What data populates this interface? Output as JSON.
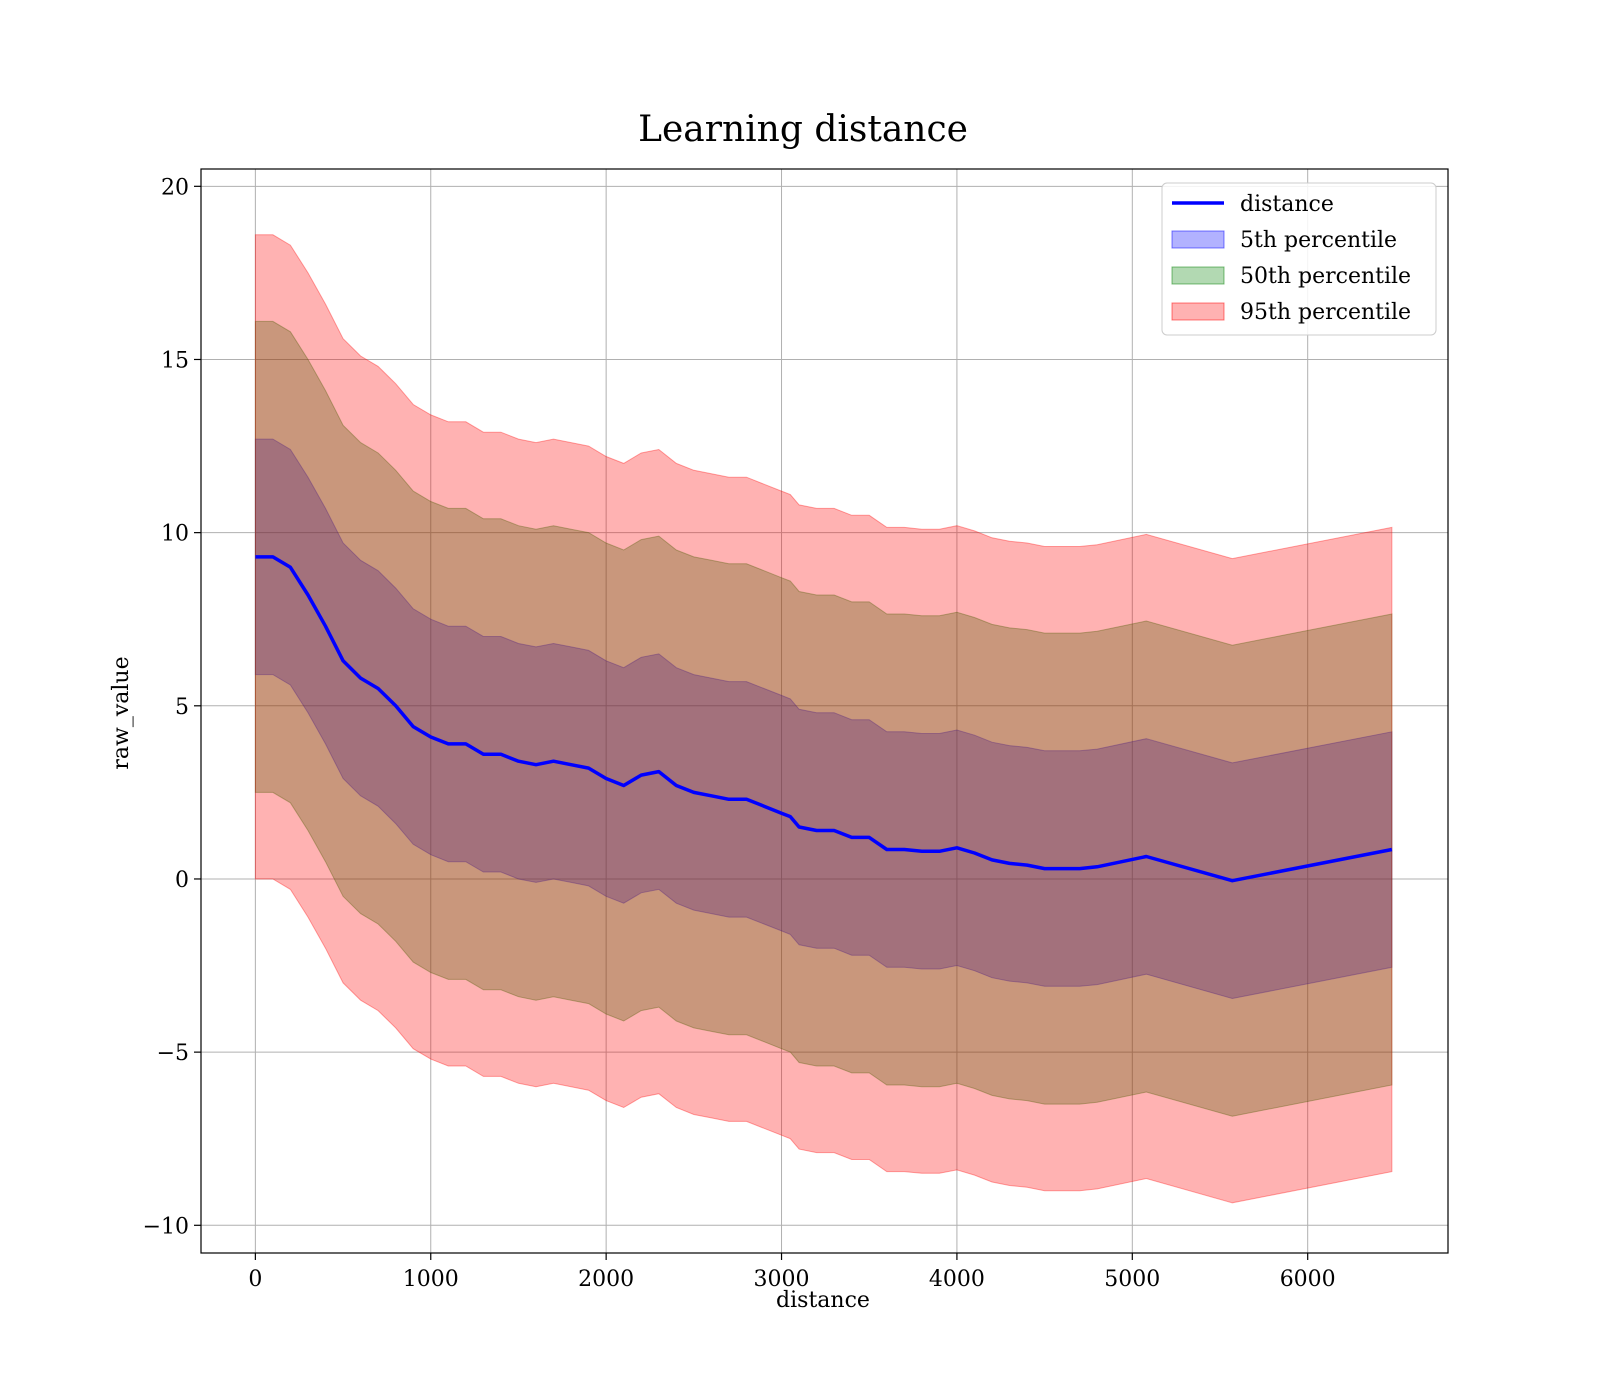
{
  "chart_data": {
    "type": "area",
    "title": "Learning distance",
    "xlabel": "distance",
    "ylabel": "raw_value",
    "xlim": [
      -310,
      6800
    ],
    "ylim": [
      -10.8,
      20.5
    ],
    "xticks": [
      0,
      1000,
      2000,
      3000,
      4000,
      5000,
      6000
    ],
    "yticks": [
      -10,
      -5,
      0,
      5,
      10,
      15,
      20
    ],
    "ytick_labels": [
      "−10",
      "−5",
      "0",
      "5",
      "10",
      "15",
      "20"
    ],
    "grid": true,
    "legend_position": "top-right",
    "x": [
      0,
      100,
      200,
      300,
      400,
      500,
      600,
      700,
      800,
      900,
      1000,
      1100,
      1200,
      1300,
      1400,
      1500,
      1600,
      1700,
      1800,
      1900,
      2000,
      2100,
      2200,
      2300,
      2400,
      2500,
      2600,
      2700,
      2800,
      2900,
      3000,
      3050,
      3100,
      3200,
      3300,
      3400,
      3500,
      3600,
      3700,
      3800,
      3900,
      4000,
      4100,
      4200,
      4300,
      4400,
      4500,
      4600,
      4700,
      4800,
      5080,
      5570,
      6480
    ],
    "series": [
      {
        "name": "distance",
        "kind": "line",
        "color": "#0000ff",
        "values": [
          9.3,
          9.3,
          9.0,
          8.2,
          7.3,
          6.3,
          5.8,
          5.5,
          5.0,
          4.4,
          4.1,
          3.9,
          3.9,
          3.6,
          3.6,
          3.4,
          3.3,
          3.4,
          3.3,
          3.2,
          2.9,
          2.7,
          3.0,
          3.1,
          2.7,
          2.5,
          2.4,
          2.3,
          2.3,
          2.1,
          1.9,
          1.8,
          1.5,
          1.4,
          1.4,
          1.2,
          1.2,
          0.85,
          0.85,
          0.8,
          0.8,
          0.9,
          0.75,
          0.55,
          0.45,
          0.4,
          0.3,
          0.3,
          0.3,
          0.35,
          0.65,
          -0.05,
          0.85
        ]
      },
      {
        "name": "5th percentile",
        "kind": "band",
        "color": "#0000ff",
        "opacity": 0.3,
        "upper": [
          12.7,
          12.7,
          12.4,
          11.6,
          10.7,
          9.7,
          9.2,
          8.9,
          8.4,
          7.8,
          7.5,
          7.3,
          7.3,
          7.0,
          7.0,
          6.8,
          6.7,
          6.8,
          6.7,
          6.6,
          6.3,
          6.1,
          6.4,
          6.5,
          6.1,
          5.9,
          5.8,
          5.7,
          5.7,
          5.5,
          5.3,
          5.2,
          4.9,
          4.8,
          4.8,
          4.6,
          4.6,
          4.25,
          4.25,
          4.2,
          4.2,
          4.3,
          4.15,
          3.95,
          3.85,
          3.8,
          3.7,
          3.7,
          3.7,
          3.75,
          4.05,
          3.35,
          4.25
        ],
        "lower": [
          5.9,
          5.9,
          5.6,
          4.8,
          3.9,
          2.9,
          2.4,
          2.1,
          1.6,
          1.0,
          0.7,
          0.5,
          0.5,
          0.2,
          0.2,
          0.0,
          -0.1,
          0.0,
          -0.1,
          -0.2,
          -0.5,
          -0.7,
          -0.4,
          -0.3,
          -0.7,
          -0.9,
          -1.0,
          -1.1,
          -1.1,
          -1.3,
          -1.5,
          -1.6,
          -1.9,
          -2.0,
          -2.0,
          -2.2,
          -2.2,
          -2.55,
          -2.55,
          -2.6,
          -2.6,
          -2.5,
          -2.65,
          -2.85,
          -2.95,
          -3.0,
          -3.1,
          -3.1,
          -3.1,
          -3.05,
          -2.75,
          -3.45,
          -2.55
        ]
      },
      {
        "name": "50th percentile",
        "kind": "band",
        "color": "#008000",
        "opacity": 0.3,
        "upper": [
          16.1,
          16.1,
          15.8,
          15.0,
          14.1,
          13.1,
          12.6,
          12.3,
          11.8,
          11.2,
          10.9,
          10.7,
          10.7,
          10.4,
          10.4,
          10.2,
          10.1,
          10.2,
          10.1,
          10.0,
          9.7,
          9.5,
          9.8,
          9.9,
          9.5,
          9.3,
          9.2,
          9.1,
          9.1,
          8.9,
          8.7,
          8.6,
          8.3,
          8.2,
          8.2,
          8.0,
          8.0,
          7.65,
          7.65,
          7.6,
          7.6,
          7.7,
          7.55,
          7.35,
          7.25,
          7.2,
          7.1,
          7.1,
          7.1,
          7.15,
          7.45,
          6.75,
          7.65
        ],
        "lower": [
          2.5,
          2.5,
          2.2,
          1.4,
          0.5,
          -0.5,
          -1.0,
          -1.3,
          -1.8,
          -2.4,
          -2.7,
          -2.9,
          -2.9,
          -3.2,
          -3.2,
          -3.4,
          -3.5,
          -3.4,
          -3.5,
          -3.6,
          -3.9,
          -4.1,
          -3.8,
          -3.7,
          -4.1,
          -4.3,
          -4.4,
          -4.5,
          -4.5,
          -4.7,
          -4.9,
          -5.0,
          -5.3,
          -5.4,
          -5.4,
          -5.6,
          -5.6,
          -5.95,
          -5.95,
          -6.0,
          -6.0,
          -5.9,
          -6.05,
          -6.25,
          -6.35,
          -6.4,
          -6.5,
          -6.5,
          -6.5,
          -6.45,
          -6.15,
          -6.85,
          -5.95
        ]
      },
      {
        "name": "95th percentile",
        "kind": "band",
        "color": "#ff0000",
        "opacity": 0.3,
        "upper": [
          18.6,
          18.6,
          18.3,
          17.5,
          16.6,
          15.6,
          15.1,
          14.8,
          14.3,
          13.7,
          13.4,
          13.2,
          13.2,
          12.9,
          12.9,
          12.7,
          12.6,
          12.7,
          12.6,
          12.5,
          12.2,
          12.0,
          12.3,
          12.4,
          12.0,
          11.8,
          11.7,
          11.6,
          11.6,
          11.4,
          11.2,
          11.1,
          10.8,
          10.7,
          10.7,
          10.5,
          10.5,
          10.15,
          10.15,
          10.1,
          10.1,
          10.2,
          10.05,
          9.85,
          9.75,
          9.7,
          9.6,
          9.6,
          9.6,
          9.65,
          9.95,
          9.25,
          10.15
        ],
        "lower": [
          0.0,
          0.0,
          -0.3,
          -1.1,
          -2.0,
          -3.0,
          -3.5,
          -3.8,
          -4.3,
          -4.9,
          -5.2,
          -5.4,
          -5.4,
          -5.7,
          -5.7,
          -5.9,
          -6.0,
          -5.9,
          -6.0,
          -6.1,
          -6.4,
          -6.6,
          -6.3,
          -6.2,
          -6.6,
          -6.8,
          -6.9,
          -7.0,
          -7.0,
          -7.2,
          -7.4,
          -7.5,
          -7.8,
          -7.9,
          -7.9,
          -8.1,
          -8.1,
          -8.45,
          -8.45,
          -8.5,
          -8.5,
          -8.4,
          -8.55,
          -8.75,
          -8.85,
          -8.9,
          -9.0,
          -9.0,
          -9.0,
          -8.95,
          -8.65,
          -9.35,
          -8.45
        ]
      }
    ]
  }
}
